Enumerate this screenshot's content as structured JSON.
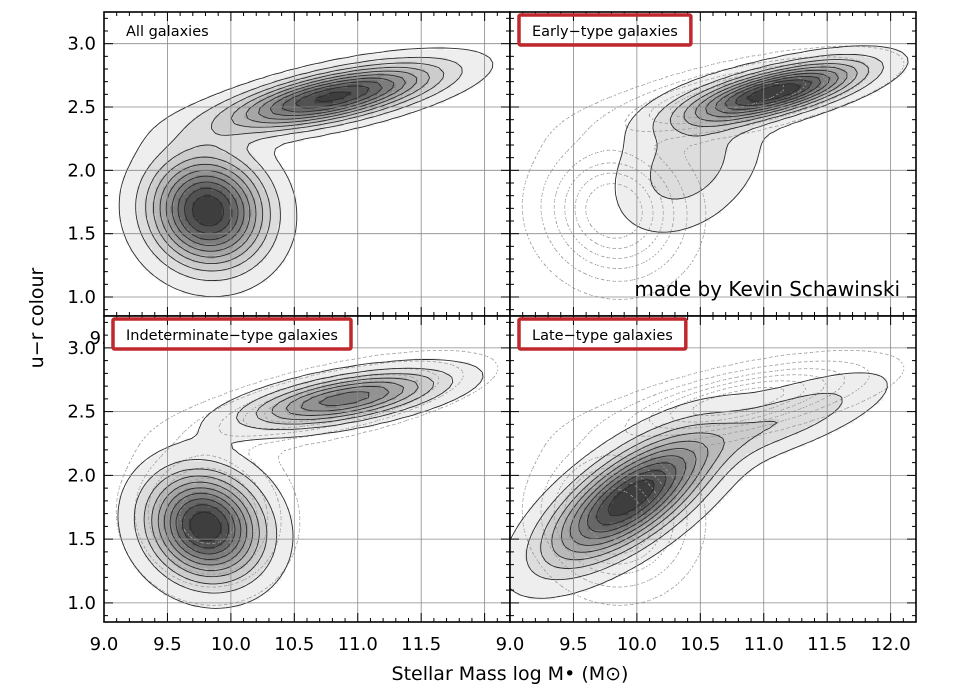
{
  "figure": {
    "xlabel": "Stellar Mass log M• (M⊙)",
    "ylabel": "u−r colour",
    "credit": "made by Kevin Schawinski"
  },
  "chart_data": [
    {
      "type": "contour",
      "title": "All galaxies",
      "title_boxed": false,
      "xlim": [
        9.0,
        12.2
      ],
      "ylim": [
        0.85,
        3.25
      ],
      "x_ticks": [
        "9.0",
        "9.5",
        "10.0",
        "10.5",
        "11.0",
        "11.5"
      ],
      "y_ticks": [
        "1.0",
        "1.5",
        "2.0",
        "2.5",
        "3.0"
      ],
      "grid": true,
      "components": [
        {
          "x": 9.82,
          "y": 1.68,
          "sx": 0.28,
          "sy": 0.3,
          "angle": 60,
          "amp": 1.0
        },
        {
          "x": 10.8,
          "y": 2.58,
          "sx": 0.55,
          "sy": 0.12,
          "angle": 12,
          "amp": 0.95
        }
      ],
      "overlay_dotted": false
    },
    {
      "type": "contour",
      "title": "Early−type galaxies",
      "title_boxed": true,
      "xlim": [
        9.0,
        12.2
      ],
      "ylim": [
        0.85,
        3.25
      ],
      "x_ticks": [],
      "y_ticks": [],
      "grid": true,
      "components": [
        {
          "x": 11.1,
          "y": 2.62,
          "sx": 0.45,
          "sy": 0.11,
          "angle": 14,
          "amp": 0.55
        },
        {
          "x": 10.4,
          "y": 2.05,
          "sx": 0.4,
          "sy": 0.28,
          "angle": 40,
          "amp": 0.12
        }
      ],
      "overlay_dotted": true
    },
    {
      "type": "contour",
      "title": "Indeterminate−type galaxies",
      "title_boxed": true,
      "xlim": [
        9.0,
        12.2
      ],
      "ylim": [
        0.85,
        3.25
      ],
      "x_ticks": [
        "9.0",
        "9.5",
        "10.0",
        "10.5",
        "11.0",
        "11.5"
      ],
      "y_ticks": [
        "1.0",
        "1.5",
        "2.0",
        "2.5",
        "3.0"
      ],
      "grid": true,
      "components": [
        {
          "x": 9.8,
          "y": 1.6,
          "sx": 0.26,
          "sy": 0.3,
          "angle": 60,
          "amp": 0.8
        },
        {
          "x": 10.9,
          "y": 2.6,
          "sx": 0.5,
          "sy": 0.11,
          "angle": 10,
          "amp": 0.55
        }
      ],
      "overlay_dotted": true
    },
    {
      "type": "contour",
      "title": "Late−type galaxies",
      "title_boxed": true,
      "xlim": [
        9.0,
        12.2
      ],
      "ylim": [
        0.85,
        3.25
      ],
      "x_ticks": [
        "9.0",
        "9.5",
        "10.0",
        "10.5",
        "11.0",
        "11.5",
        "12.0"
      ],
      "y_ticks": [],
      "grid": true,
      "components": [
        {
          "x": 9.95,
          "y": 1.82,
          "sx": 0.5,
          "sy": 0.2,
          "angle": 35,
          "amp": 0.65
        },
        {
          "x": 11.2,
          "y": 2.45,
          "sx": 0.5,
          "sy": 0.14,
          "angle": 20,
          "amp": 0.15
        }
      ],
      "overlay_dotted": true
    }
  ],
  "colors": {
    "highlight_box": "#c0282d",
    "axis": "#000000",
    "grid": "#8a8a8a",
    "contour_line": "#2a2a2a",
    "dotted_line": "#9a9a9a"
  }
}
